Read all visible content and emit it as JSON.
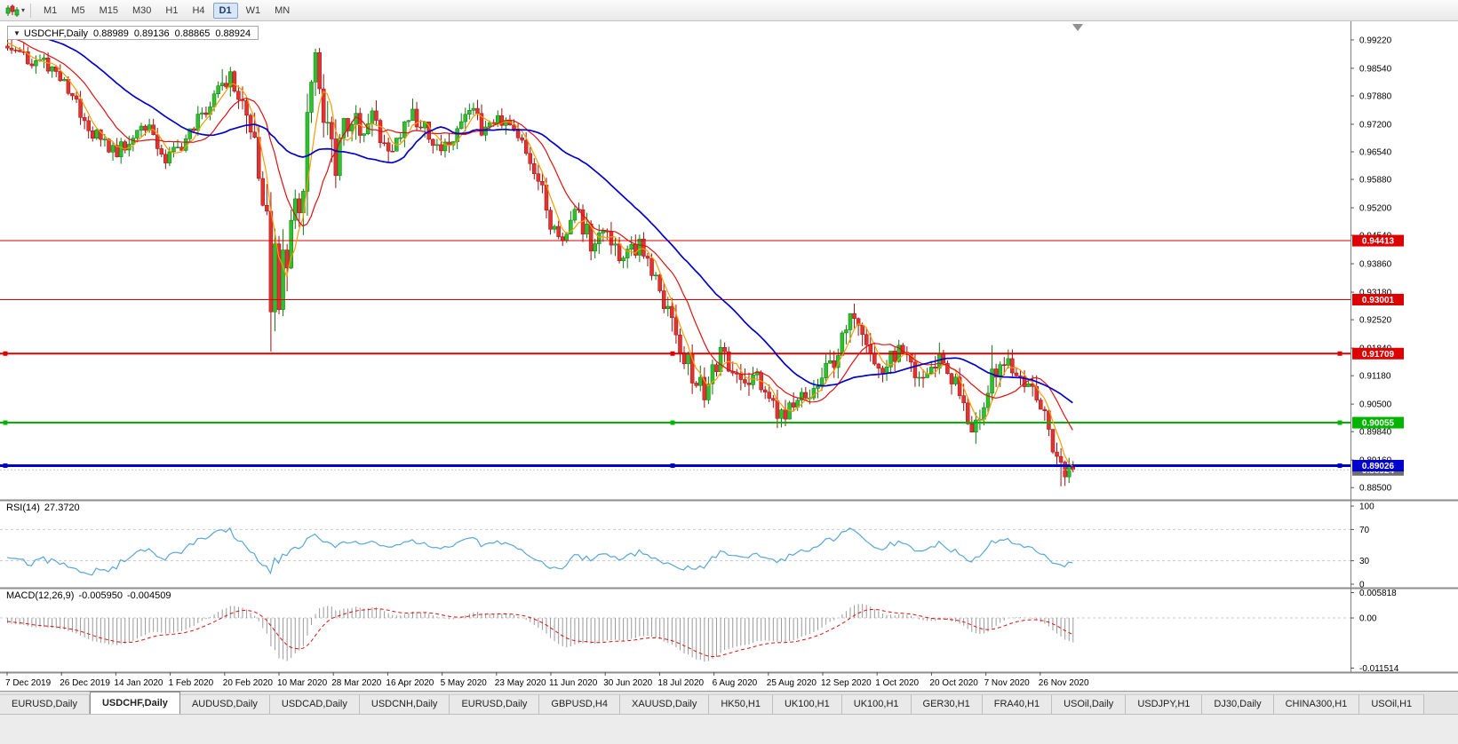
{
  "toolbar": {
    "timeframes": [
      "M1",
      "M5",
      "M15",
      "M30",
      "H1",
      "H4",
      "D1",
      "W1",
      "MN"
    ],
    "active_timeframe": "D1"
  },
  "chart": {
    "symbol_label": "USDCHF,Daily",
    "ohlc": {
      "open": "0.88989",
      "high": "0.89136",
      "low": "0.88865",
      "close": "0.88924"
    },
    "price_axis_ticks": [
      "0.99220",
      "0.98540",
      "0.97880",
      "0.97200",
      "0.96540",
      "0.95880",
      "0.95200",
      "0.94540",
      "0.93860",
      "0.93180",
      "0.92520",
      "0.91840",
      "0.91180",
      "0.90500",
      "0.89840",
      "0.89160",
      "0.88500"
    ],
    "date_labels": [
      "7 Dec 2019",
      "26 Dec 2019",
      "14 Jan 2020",
      "1 Feb 2020",
      "20 Feb 2020",
      "10 Mar 2020",
      "28 Mar 2020",
      "16 Apr 2020",
      "5 May 2020",
      "23 May 2020",
      "11 Jun 2020",
      "30 Jun 2020",
      "18 Jul 2020",
      "6 Aug 2020",
      "25 Aug 2020",
      "12 Sep 2020",
      "1 Oct 2020",
      "20 Oct 2020",
      "7 Nov 2020",
      "26 Nov 2020"
    ],
    "hlines": [
      {
        "value": 0.94413,
        "label": "0.94413",
        "color": "#dd0000",
        "width": 1,
        "handles": false
      },
      {
        "value": 0.93001,
        "label": "0.93001",
        "color": "#dd0000",
        "width": 1,
        "handles": false
      },
      {
        "value": 0.91709,
        "label": "0.91709",
        "color": "#dd0000",
        "width": 2,
        "handles": true
      },
      {
        "value": 0.90055,
        "label": "0.90055",
        "color": "#00b400",
        "width": 2,
        "handles": true
      },
      {
        "value": 0.89026,
        "label": "0.89026",
        "color": "#0000cc",
        "width": 3,
        "handles": true
      }
    ],
    "current_price": {
      "label": "0.88924",
      "value": 0.88924,
      "badge_color": "#6e6e6e"
    }
  },
  "indicators": {
    "rsi": {
      "name": "RSI(14)",
      "value": "27.3720",
      "axis_labels": [
        "100",
        "70",
        "30",
        "0"
      ],
      "color": "#58a6d8",
      "levels": [
        70,
        30
      ]
    },
    "macd": {
      "name": "MACD(12,26,9)",
      "value": "-0.005950",
      "signal_value": "-0.004509",
      "axis_labels": [
        "0.005818",
        "0.00",
        "-0.011514"
      ]
    }
  },
  "tabs": [
    {
      "label": "EURUSD,Daily",
      "active": false
    },
    {
      "label": "USDCHF,Daily",
      "active": true
    },
    {
      "label": "AUDUSD,Daily",
      "active": false
    },
    {
      "label": "USDCAD,Daily",
      "active": false
    },
    {
      "label": "USDCNH,Daily",
      "active": false
    },
    {
      "label": "EURUSD,Daily",
      "active": false
    },
    {
      "label": "GBPUSD,H4",
      "active": false
    },
    {
      "label": "XAUUSD,Daily",
      "active": false
    },
    {
      "label": "HK50,H1",
      "active": false
    },
    {
      "label": "UK100,H1",
      "active": false
    },
    {
      "label": "UK100,H1",
      "active": false
    },
    {
      "label": "GER30,H1",
      "active": false
    },
    {
      "label": "FRA40,H1",
      "active": false
    },
    {
      "label": "USOil,Daily",
      "active": false
    },
    {
      "label": "USDJPY,H1",
      "active": false
    },
    {
      "label": "DJ30,Daily",
      "active": false
    },
    {
      "label": "CHINA300,H1",
      "active": false
    },
    {
      "label": "USOil,H1",
      "active": false
    }
  ],
  "chart_data": {
    "type": "candlestick",
    "symbol": "USDCHF",
    "timeframe": "D1",
    "bar_count": 264,
    "price_range_visible": [
      0.8827,
      0.9958
    ],
    "colors": {
      "up_fill": "#2fbf2f",
      "up_stroke": "#0e7a0e",
      "down_fill": "#e23333",
      "down_stroke": "#991111"
    },
    "price_keypoints": [
      [
        0,
        0.9915
      ],
      [
        3,
        0.9892
      ],
      [
        6,
        0.987
      ],
      [
        9,
        0.9878
      ],
      [
        12,
        0.9842
      ],
      [
        15,
        0.98
      ],
      [
        18,
        0.9755
      ],
      [
        21,
        0.97
      ],
      [
        24,
        0.9668
      ],
      [
        27,
        0.9655
      ],
      [
        30,
        0.9678
      ],
      [
        33,
        0.9712
      ],
      [
        36,
        0.97
      ],
      [
        39,
        0.9636
      ],
      [
        42,
        0.966
      ],
      [
        45,
        0.9698
      ],
      [
        48,
        0.9745
      ],
      [
        51,
        0.9792
      ],
      [
        54,
        0.9832
      ],
      [
        56,
        0.9812
      ],
      [
        58,
        0.9768
      ],
      [
        60,
        0.97
      ],
      [
        62,
        0.9636
      ],
      [
        63,
        0.9576
      ],
      [
        64,
        0.947
      ],
      [
        65,
        0.9295
      ],
      [
        66,
        0.938
      ],
      [
        67,
        0.9338
      ],
      [
        68,
        0.9415
      ],
      [
        69,
        0.9388
      ],
      [
        70,
        0.9478
      ],
      [
        71,
        0.9548
      ],
      [
        72,
        0.9512
      ],
      [
        73,
        0.9618
      ],
      [
        74,
        0.9722
      ],
      [
        75,
        0.9802
      ],
      [
        76,
        0.9862
      ],
      [
        77,
        0.984
      ],
      [
        78,
        0.9776
      ],
      [
        79,
        0.97
      ],
      [
        80,
        0.9642
      ],
      [
        81,
        0.96
      ],
      [
        82,
        0.9676
      ],
      [
        83,
        0.9718
      ],
      [
        84,
        0.9682
      ],
      [
        86,
        0.9738
      ],
      [
        88,
        0.97
      ],
      [
        90,
        0.9732
      ],
      [
        92,
        0.97
      ],
      [
        94,
        0.9664
      ],
      [
        96,
        0.968
      ],
      [
        98,
        0.9728
      ],
      [
        100,
        0.9752
      ],
      [
        102,
        0.9718
      ],
      [
        104,
        0.9698
      ],
      [
        106,
        0.9678
      ],
      [
        108,
        0.9658
      ],
      [
        110,
        0.9698
      ],
      [
        112,
        0.9728
      ],
      [
        114,
        0.9748
      ],
      [
        116,
        0.9728
      ],
      [
        118,
        0.97
      ],
      [
        120,
        0.9714
      ],
      [
        122,
        0.9738
      ],
      [
        124,
        0.9728
      ],
      [
        126,
        0.9698
      ],
      [
        128,
        0.9658
      ],
      [
        130,
        0.9618
      ],
      [
        132,
        0.9558
      ],
      [
        134,
        0.9478
      ],
      [
        136,
        0.9428
      ],
      [
        138,
        0.9458
      ],
      [
        140,
        0.9508
      ],
      [
        142,
        0.9478
      ],
      [
        144,
        0.9438
      ],
      [
        146,
        0.9458
      ],
      [
        148,
        0.9472
      ],
      [
        150,
        0.9428
      ],
      [
        152,
        0.9398
      ],
      [
        154,
        0.9418
      ],
      [
        156,
        0.9438
      ],
      [
        158,
        0.9398
      ],
      [
        160,
        0.9358
      ],
      [
        162,
        0.9298
      ],
      [
        164,
        0.9238
      ],
      [
        166,
        0.9198
      ],
      [
        168,
        0.9148
      ],
      [
        170,
        0.9108
      ],
      [
        172,
        0.9078
      ],
      [
        174,
        0.9128
      ],
      [
        176,
        0.9168
      ],
      [
        178,
        0.9138
      ],
      [
        180,
        0.9108
      ],
      [
        182,
        0.9088
      ],
      [
        184,
        0.9128
      ],
      [
        186,
        0.9098
      ],
      [
        188,
        0.9058
      ],
      [
        190,
        0.9038
      ],
      [
        192,
        0.9008
      ],
      [
        194,
        0.9058
      ],
      [
        196,
        0.9088
      ],
      [
        198,
        0.9068
      ],
      [
        200,
        0.9098
      ],
      [
        202,
        0.9128
      ],
      [
        204,
        0.9158
      ],
      [
        206,
        0.9198
      ],
      [
        208,
        0.9242
      ],
      [
        210,
        0.9218
      ],
      [
        212,
        0.9168
      ],
      [
        214,
        0.9148
      ],
      [
        216,
        0.9128
      ],
      [
        218,
        0.9158
      ],
      [
        220,
        0.9178
      ],
      [
        222,
        0.9148
      ],
      [
        224,
        0.9128
      ],
      [
        226,
        0.9108
      ],
      [
        228,
        0.9138
      ],
      [
        230,
        0.9158
      ],
      [
        232,
        0.9128
      ],
      [
        234,
        0.9098
      ],
      [
        236,
        0.9038
      ],
      [
        238,
        0.8995
      ],
      [
        240,
        0.9038
      ],
      [
        242,
        0.9088
      ],
      [
        244,
        0.9138
      ],
      [
        246,
        0.9158
      ],
      [
        248,
        0.9138
      ],
      [
        250,
        0.9128
      ],
      [
        252,
        0.9098
      ],
      [
        254,
        0.9058
      ],
      [
        256,
        0.9008
      ],
      [
        258,
        0.8958
      ],
      [
        260,
        0.8898
      ],
      [
        261,
        0.8878
      ],
      [
        262,
        0.8893
      ],
      [
        263,
        0.88924
      ]
    ],
    "volatility_keypoints": [
      [
        0,
        1.0
      ],
      [
        50,
        0.9
      ],
      [
        58,
        1.8
      ],
      [
        62,
        2.6
      ],
      [
        66,
        3.2
      ],
      [
        72,
        3.0
      ],
      [
        80,
        2.6
      ],
      [
        86,
        1.8
      ],
      [
        95,
        1.2
      ],
      [
        130,
        1.0
      ],
      [
        140,
        1.3
      ],
      [
        158,
        1.1
      ],
      [
        165,
        1.6
      ],
      [
        175,
        1.3
      ],
      [
        200,
        1.1
      ],
      [
        208,
        1.5
      ],
      [
        220,
        1.0
      ],
      [
        236,
        1.4
      ],
      [
        246,
        1.2
      ],
      [
        256,
        1.3
      ],
      [
        263,
        0.9
      ]
    ],
    "overrides": {
      "39": {
        "l": 0.9613
      },
      "53": {
        "h": 0.9852
      },
      "65": {
        "l": 0.9176
      },
      "76": {
        "h": 0.9901
      },
      "192": {
        "l": 0.8997
      },
      "208": {
        "h": 0.9259
      },
      "238": {
        "l": 0.8982
      },
      "243": {
        "h": 0.9191
      },
      "260": {
        "l": 0.8853
      },
      "263": {
        "o": 0.88989,
        "h": 0.89136,
        "l": 0.88865,
        "c": 0.88924
      }
    },
    "noise": {
      "body": 0.004,
      "wick": 0.0022
    },
    "prehistory": {
      "bars": 60,
      "start": 0.9915,
      "step": 0.00035,
      "cap": 0.996
    },
    "moving_averages": [
      {
        "name": "fast-ma",
        "window": 5,
        "color": "#ff9900",
        "width": 1.2
      },
      {
        "name": "medium-ma",
        "window": 13,
        "color": "#e01010",
        "width": 1.2
      },
      {
        "name": "slow-ma",
        "window": 34,
        "color": "#0000cc",
        "width": 1.7
      }
    ],
    "rsi": {
      "period": 14,
      "last_value": 27.372,
      "overbought": 70,
      "oversold": 30
    },
    "macd": {
      "fast": 12,
      "slow": 26,
      "signal": 9,
      "last_value": -0.00595,
      "last_signal": -0.004509,
      "axis_max": 0.005818,
      "axis_min": -0.011514
    }
  }
}
